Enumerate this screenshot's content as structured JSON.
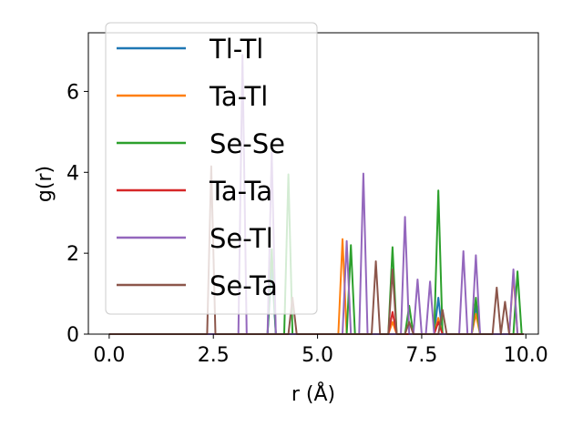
{
  "chart_data": {
    "type": "line",
    "title": "",
    "xlabel": "r (Å)",
    "ylabel": "g(r)",
    "xlim": [
      -0.5,
      10.3
    ],
    "ylim": [
      0,
      7.45
    ],
    "xticks": [
      0.0,
      2.5,
      5.0,
      7.5,
      10.0
    ],
    "xtick_labels": [
      "0.0",
      "2.5",
      "5.0",
      "7.5",
      "10.0"
    ],
    "yticks": [
      0,
      2,
      4,
      6
    ],
    "ytick_labels": [
      "0",
      "2",
      "4",
      "6"
    ],
    "grid": false,
    "legend_position": "upper-left",
    "series": [
      {
        "name": "Tl-Tl",
        "color": "#1f77b4",
        "peaks": [
          [
            3.9,
            1.7
          ],
          [
            7.9,
            0.9
          ],
          [
            8.8,
            0.7
          ]
        ]
      },
      {
        "name": "Ta-Tl",
        "color": "#ff7f0e",
        "peaks": [
          [
            5.6,
            2.35
          ],
          [
            6.8,
            0.3
          ],
          [
            7.9,
            0.4
          ],
          [
            8.8,
            0.5
          ],
          [
            9.7,
            1.5
          ]
        ]
      },
      {
        "name": "Se-Se",
        "color": "#2ca02c",
        "peaks": [
          [
            3.9,
            2.1
          ],
          [
            4.3,
            3.95
          ],
          [
            5.8,
            2.2
          ],
          [
            6.8,
            2.15
          ],
          [
            7.2,
            0.7
          ],
          [
            7.9,
            3.55
          ],
          [
            8.8,
            0.9
          ],
          [
            9.8,
            1.55
          ]
        ]
      },
      {
        "name": "Ta-Ta",
        "color": "#d62728",
        "peaks": [
          [
            6.8,
            0.55
          ],
          [
            7.9,
            0.3
          ]
        ]
      },
      {
        "name": "Se-Tl",
        "color": "#9467bd",
        "peaks": [
          [
            3.2,
            6.9
          ],
          [
            3.9,
            4.5
          ],
          [
            5.7,
            2.3
          ],
          [
            6.1,
            3.97
          ],
          [
            7.1,
            2.9
          ],
          [
            7.4,
            1.35
          ],
          [
            7.7,
            1.3
          ],
          [
            8.5,
            2.05
          ],
          [
            8.8,
            1.95
          ],
          [
            9.7,
            1.6
          ]
        ]
      },
      {
        "name": "Se-Ta",
        "color": "#8c564b",
        "peaks": [
          [
            2.45,
            4.15
          ],
          [
            4.4,
            0.9
          ],
          [
            6.4,
            1.8
          ],
          [
            6.8,
            1.6
          ],
          [
            7.2,
            0.3
          ],
          [
            8.0,
            0.6
          ],
          [
            9.3,
            1.15
          ],
          [
            9.5,
            0.8
          ]
        ]
      }
    ]
  }
}
